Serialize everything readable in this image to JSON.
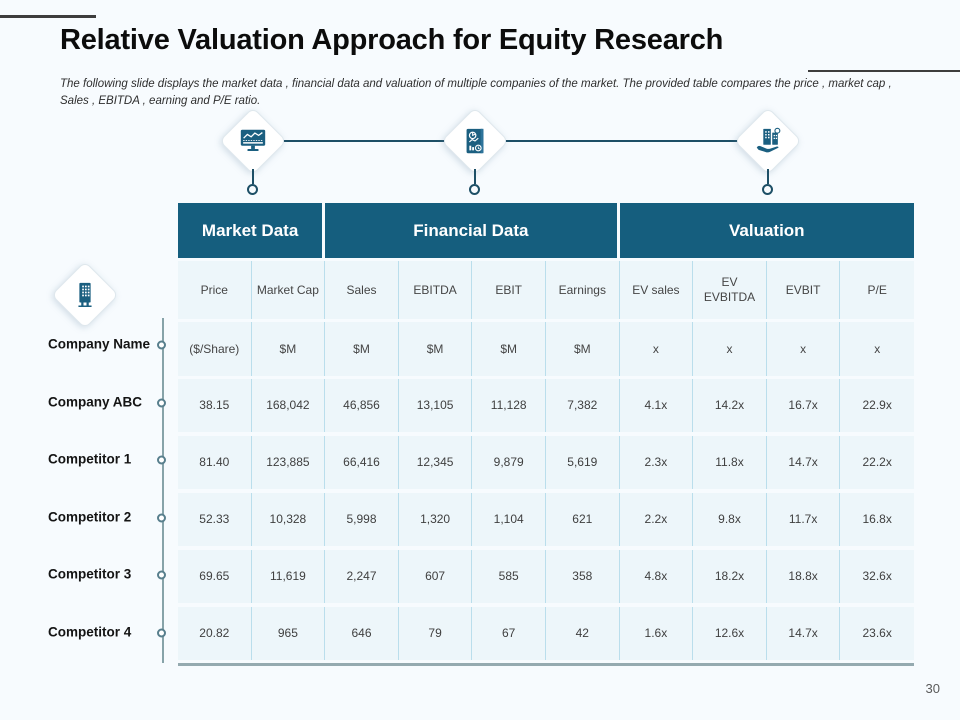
{
  "slide": {
    "title": "Relative Valuation Approach for Equity Research",
    "subtitle": "The following slide displays the market data , financial data and valuation of multiple companies of the market. The provided table compares the price , market cap , Sales , EBITDA , earning and P/E ratio.",
    "page_number": "30"
  },
  "flow": {
    "nodes": [
      {
        "icon": "market-data-icon"
      },
      {
        "icon": "financial-report-icon"
      },
      {
        "icon": "valuation-icon"
      }
    ],
    "company_icon": "company-building-icon"
  },
  "colors": {
    "header_teal": "#155e7e",
    "cell_bg": "#edf6fa",
    "cell_border": "#badeec",
    "icon_teal": "#1b5f80",
    "accent_dark": "#3d3d3d",
    "table_bottom_bar": "#95aab0"
  },
  "table": {
    "groups": [
      {
        "label": "Market Data",
        "span": 2
      },
      {
        "label": "Financial Data",
        "span": 4
      },
      {
        "label": "Valuation",
        "span": 4
      }
    ],
    "columns": [
      "Price",
      "Market Cap",
      "Sales",
      "EBITDA",
      "EBIT",
      "Earnings",
      "EV sales",
      "EV EVBITDA",
      "EVBIT",
      "P/E"
    ],
    "units": [
      "($/Share)",
      "$M",
      "$M",
      "$M",
      "$M",
      "$M",
      "x",
      "x",
      "x",
      "x"
    ],
    "row_labels": [
      "Company Name",
      "Company ABC",
      "Competitor 1",
      "Competitor 2",
      "Competitor 3",
      "Competitor 4"
    ],
    "rows": [
      [
        "38.15",
        "168,042",
        "46,856",
        "13,105",
        "11,128",
        "7,382",
        "4.1x",
        "14.2x",
        "16.7x",
        "22.9x"
      ],
      [
        "81.40",
        "123,885",
        "66,416",
        "12,345",
        "9,879",
        "5,619",
        "2.3x",
        "11.8x",
        "14.7x",
        "22.2x"
      ],
      [
        "52.33",
        "10,328",
        "5,998",
        "1,320",
        "1,104",
        "621",
        "2.2x",
        "9.8x",
        "11.7x",
        "16.8x"
      ],
      [
        "69.65",
        "11,619",
        "2,247",
        "607",
        "585",
        "358",
        "4.8x",
        "18.2x",
        "18.8x",
        "32.6x"
      ],
      [
        "20.82",
        "965",
        "646",
        "79",
        "67",
        "42",
        "1.6x",
        "12.6x",
        "14.7x",
        "23.6x"
      ]
    ]
  }
}
